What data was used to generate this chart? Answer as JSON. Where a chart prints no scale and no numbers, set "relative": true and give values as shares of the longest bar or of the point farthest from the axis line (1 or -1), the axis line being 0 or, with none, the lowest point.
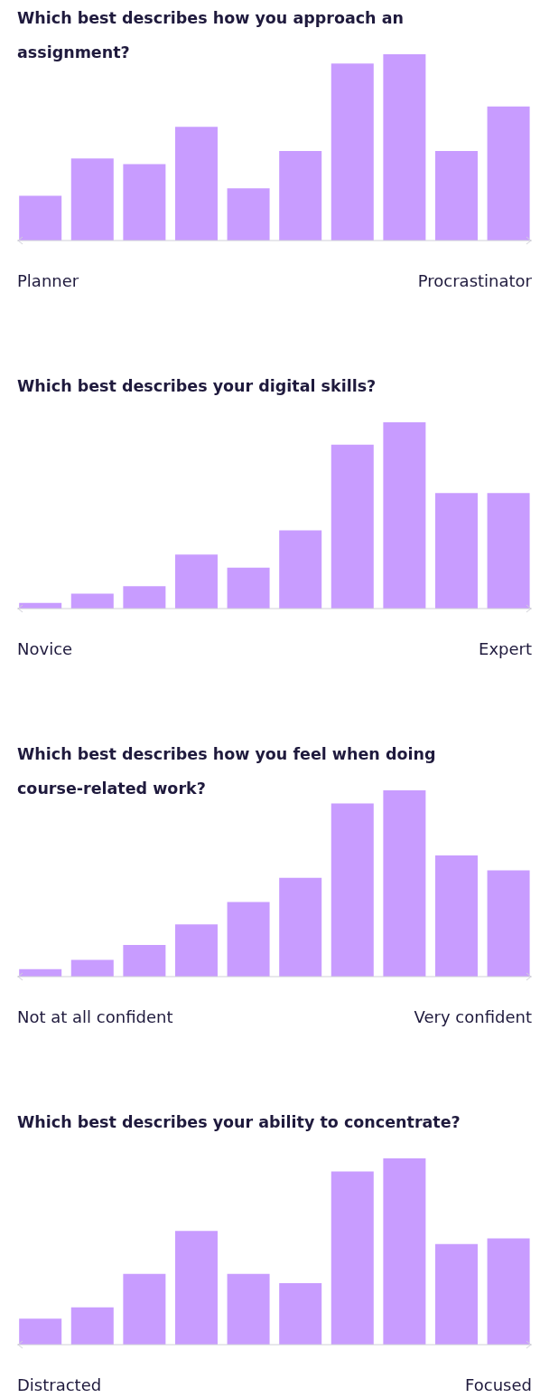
{
  "chart_data": [
    {
      "type": "bar",
      "title": "Which best describes how you approach an assignment?",
      "categories": [
        null,
        null,
        null,
        null,
        null,
        null,
        null,
        null,
        null,
        null
      ],
      "values": [
        0.24,
        0.44,
        0.41,
        0.61,
        0.28,
        0.48,
        0.95,
        1,
        0.48,
        0.72
      ],
      "color": "#c89cff",
      "relative": true,
      "annotations": [
        "Planner",
        "Procrastinator"
      ]
    },
    {
      "type": "bar",
      "title": "Which best describes your digital skills?",
      "categories": [
        null,
        null,
        null,
        null,
        null,
        null,
        null,
        null,
        null,
        null
      ],
      "values": [
        0.03,
        0.08,
        0.12,
        0.29,
        0.22,
        0.42,
        0.88,
        1,
        0.62,
        0.62
      ],
      "color": "#c89cff",
      "relative": true,
      "annotations": [
        "Novice",
        "Expert"
      ]
    },
    {
      "type": "bar",
      "title": "Which best describes how you feel when doing course-related work?",
      "categories": [
        null,
        null,
        null,
        null,
        null,
        null,
        null,
        null,
        null,
        null
      ],
      "values": [
        0.04,
        0.09,
        0.17,
        0.28,
        0.4,
        0.53,
        0.93,
        1,
        0.65,
        0.57
      ],
      "color": "#c89cff",
      "relative": true,
      "annotations": [
        "Not at all confident",
        "Very confident"
      ]
    },
    {
      "type": "bar",
      "title": "Which best describes your ability to concentrate?",
      "categories": [
        null,
        null,
        null,
        null,
        null,
        null,
        null,
        null,
        null,
        null
      ],
      "values": [
        0.14,
        0.2,
        0.38,
        0.61,
        0.38,
        0.33,
        0.93,
        1,
        0.54,
        0.57
      ],
      "color": "#c89cff",
      "relative": true,
      "annotations": [
        "Distracted",
        "Focused"
      ]
    }
  ]
}
